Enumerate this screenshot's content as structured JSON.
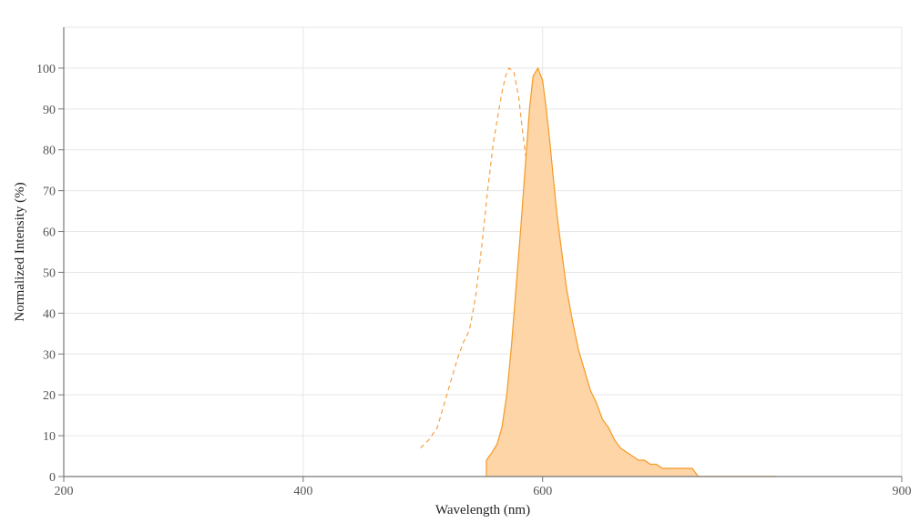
{
  "chart_data": {
    "type": "area",
    "xlabel": "Wavelength (nm)",
    "ylabel": "Normalized Intensity (%)",
    "xlim": [
      200,
      900
    ],
    "ylim": [
      0,
      110
    ],
    "x_ticks": [
      200,
      400,
      600,
      900
    ],
    "y_ticks": [
      0,
      10,
      20,
      30,
      40,
      50,
      60,
      70,
      80,
      90,
      100
    ],
    "grid": true,
    "legend": "none",
    "series": [
      {
        "style": "dashed-line",
        "color": "#f5a142",
        "x": [
          498,
          505,
          512,
          518,
          524,
          529,
          534,
          536,
          539,
          544,
          549,
          554,
          559,
          563,
          566,
          569,
          572,
          576,
          580,
          583,
          587,
          590,
          594,
          598,
          601,
          605,
          609,
          613,
          617,
          621,
          625,
          629,
          633,
          637,
          641,
          645,
          646,
          646
        ],
        "y": [
          7,
          9,
          12,
          18,
          24,
          29,
          33,
          34,
          36,
          44,
          56,
          70,
          82,
          89,
          94,
          98,
          100,
          99,
          93,
          85,
          76,
          65,
          53,
          42,
          33,
          24,
          19,
          15,
          12,
          9,
          7,
          6,
          5,
          5,
          4,
          3,
          0,
          0
        ]
      },
      {
        "style": "filled-area",
        "color": "#f59a23",
        "fill": "#fdd5a7",
        "x": [
          553,
          558,
          562,
          566,
          570,
          574,
          578,
          582,
          586,
          589,
          592,
          596,
          600,
          603,
          606,
          609,
          612,
          616,
          620,
          625,
          630,
          635,
          640,
          645,
          650,
          655,
          660,
          665,
          670,
          675,
          680,
          685,
          690,
          695,
          700,
          705,
          710,
          715,
          720,
          725,
          730,
          735,
          740,
          745,
          750,
          755,
          760,
          765,
          770,
          775,
          780,
          785,
          790,
          795
        ],
        "y": [
          4,
          6,
          8,
          12,
          20,
          32,
          47,
          62,
          78,
          90,
          98,
          100,
          97,
          90,
          82,
          73,
          64,
          55,
          46,
          38,
          31,
          26,
          21,
          18,
          14,
          12,
          9,
          7,
          6,
          5,
          4,
          4,
          3,
          3,
          2,
          2,
          2,
          2,
          2,
          2,
          0,
          0,
          0,
          0,
          0,
          0,
          0,
          0,
          0,
          0,
          0,
          0,
          0,
          0
        ]
      }
    ]
  }
}
